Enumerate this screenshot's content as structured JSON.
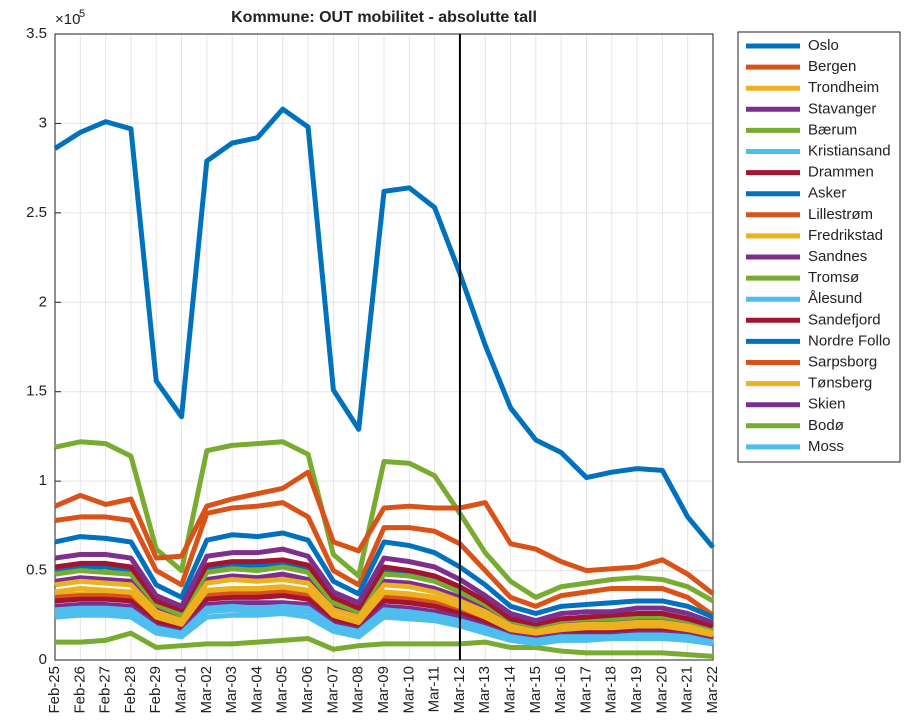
{
  "chart_data": {
    "type": "line",
    "title": "Kommune: OUT mobilitet - absolutte tall",
    "y_multiplier": "×10",
    "y_multiplier_exponent": "5",
    "vline": "Mar-12",
    "grid": true,
    "legend": "outside-right",
    "categories": [
      "Feb-25",
      "Feb-26",
      "Feb-27",
      "Feb-28",
      "Feb-29",
      "Mar-01",
      "Mar-02",
      "Mar-03",
      "Mar-04",
      "Mar-05",
      "Mar-06",
      "Mar-07",
      "Mar-08",
      "Mar-09",
      "Mar-10",
      "Mar-11",
      "Mar-12",
      "Mar-13",
      "Mar-14",
      "Mar-15",
      "Mar-16",
      "Mar-17",
      "Mar-18",
      "Mar-19",
      "Mar-20",
      "Mar-21",
      "Mar-22"
    ],
    "ylim": [
      0,
      3.5
    ],
    "yticks": [
      0,
      0.5,
      1,
      1.5,
      2,
      2.5,
      3,
      3.5
    ],
    "series": [
      {
        "name": "Oslo",
        "color": "#0072BD",
        "values": [
          2.86,
          2.95,
          3.01,
          2.97,
          1.56,
          1.36,
          2.79,
          2.89,
          2.92,
          3.08,
          2.98,
          1.51,
          1.29,
          2.62,
          2.64,
          2.53,
          2.16,
          1.76,
          1.41,
          1.23,
          1.16,
          1.02,
          1.05,
          1.07,
          1.06,
          0.8,
          0.63
        ]
      },
      {
        "name": "Bergen",
        "color": "#D95319",
        "values": [
          0.86,
          0.92,
          0.87,
          0.9,
          0.57,
          0.58,
          0.86,
          0.9,
          0.93,
          0.96,
          1.05,
          0.66,
          0.61,
          0.85,
          0.86,
          0.85,
          0.85,
          0.88,
          0.65,
          0.62,
          0.55,
          0.5,
          0.51,
          0.52,
          0.56,
          0.48,
          0.37
        ]
      },
      {
        "name": "Trondheim",
        "color": "#EDB120",
        "values": [
          0.42,
          0.44,
          0.43,
          0.42,
          0.27,
          0.22,
          0.43,
          0.45,
          0.44,
          0.45,
          0.43,
          0.28,
          0.24,
          0.42,
          0.41,
          0.38,
          0.33,
          0.27,
          0.19,
          0.16,
          0.19,
          0.2,
          0.2,
          0.21,
          0.21,
          0.19,
          0.15
        ]
      },
      {
        "name": "Stavanger",
        "color": "#7E2F8E",
        "values": [
          0.57,
          0.59,
          0.59,
          0.57,
          0.36,
          0.3,
          0.58,
          0.6,
          0.6,
          0.62,
          0.58,
          0.38,
          0.32,
          0.57,
          0.55,
          0.52,
          0.45,
          0.36,
          0.26,
          0.22,
          0.26,
          0.27,
          0.27,
          0.29,
          0.29,
          0.26,
          0.21
        ]
      },
      {
        "name": "Bærum",
        "color": "#77AC30",
        "values": [
          1.19,
          1.22,
          1.21,
          1.14,
          0.62,
          0.5,
          1.17,
          1.2,
          1.21,
          1.22,
          1.15,
          0.59,
          0.47,
          1.11,
          1.1,
          1.03,
          0.82,
          0.6,
          0.44,
          0.35,
          0.41,
          0.43,
          0.45,
          0.46,
          0.45,
          0.41,
          0.33
        ]
      },
      {
        "name": "Kristiansand",
        "color": "#4DBEEE",
        "values": [
          0.28,
          0.29,
          0.29,
          0.28,
          0.18,
          0.15,
          0.29,
          0.3,
          0.29,
          0.3,
          0.29,
          0.19,
          0.16,
          0.28,
          0.27,
          0.25,
          0.22,
          0.18,
          0.13,
          0.11,
          0.13,
          0.13,
          0.13,
          0.14,
          0.14,
          0.13,
          0.1
        ]
      },
      {
        "name": "Drammen",
        "color": "#A2142F",
        "values": [
          0.52,
          0.54,
          0.54,
          0.52,
          0.33,
          0.28,
          0.53,
          0.55,
          0.55,
          0.56,
          0.53,
          0.35,
          0.29,
          0.52,
          0.5,
          0.47,
          0.41,
          0.33,
          0.23,
          0.2,
          0.23,
          0.24,
          0.25,
          0.26,
          0.26,
          0.23,
          0.19
        ]
      },
      {
        "name": "Asker",
        "color": "#0072BD",
        "values": [
          0.66,
          0.69,
          0.68,
          0.66,
          0.42,
          0.35,
          0.67,
          0.7,
          0.69,
          0.71,
          0.67,
          0.44,
          0.37,
          0.66,
          0.64,
          0.6,
          0.52,
          0.42,
          0.3,
          0.26,
          0.3,
          0.31,
          0.32,
          0.33,
          0.33,
          0.3,
          0.24
        ]
      },
      {
        "name": "Lillestrøm",
        "color": "#D95319",
        "values": [
          0.78,
          0.8,
          0.8,
          0.78,
          0.5,
          0.42,
          0.82,
          0.85,
          0.86,
          0.88,
          0.8,
          0.5,
          0.42,
          0.74,
          0.74,
          0.72,
          0.65,
          0.5,
          0.35,
          0.3,
          0.36,
          0.38,
          0.4,
          0.4,
          0.4,
          0.35,
          0.25
        ]
      },
      {
        "name": "Fredrikstad",
        "color": "#EDB120",
        "values": [
          0.38,
          0.4,
          0.39,
          0.38,
          0.24,
          0.2,
          0.39,
          0.4,
          0.4,
          0.41,
          0.39,
          0.25,
          0.21,
          0.38,
          0.37,
          0.35,
          0.3,
          0.24,
          0.17,
          0.15,
          0.17,
          0.18,
          0.18,
          0.19,
          0.19,
          0.17,
          0.14
        ]
      },
      {
        "name": "Sandnes",
        "color": "#7E2F8E",
        "values": [
          0.3,
          0.31,
          0.31,
          0.3,
          0.19,
          0.16,
          0.31,
          0.32,
          0.32,
          0.32,
          0.31,
          0.2,
          0.17,
          0.3,
          0.29,
          0.27,
          0.24,
          0.19,
          0.14,
          0.12,
          0.14,
          0.14,
          0.14,
          0.15,
          0.15,
          0.14,
          0.11
        ]
      },
      {
        "name": "Tromsø",
        "color": "#77AC30",
        "values": [
          0.48,
          0.5,
          0.49,
          0.48,
          0.31,
          0.25,
          0.49,
          0.51,
          0.5,
          0.52,
          0.49,
          0.32,
          0.27,
          0.48,
          0.47,
          0.44,
          0.38,
          0.31,
          0.22,
          0.19,
          0.22,
          0.23,
          0.23,
          0.24,
          0.24,
          0.22,
          0.17
        ]
      },
      {
        "name": "Ålesund",
        "color": "#4DBEEE",
        "values": [
          0.24,
          0.25,
          0.25,
          0.24,
          0.15,
          0.13,
          0.24,
          0.25,
          0.25,
          0.26,
          0.24,
          0.16,
          0.13,
          0.24,
          0.23,
          0.22,
          0.19,
          0.15,
          0.11,
          0.09,
          0.11,
          0.11,
          0.12,
          0.12,
          0.12,
          0.11,
          0.09
        ]
      },
      {
        "name": "Sandefjord",
        "color": "#A2142F",
        "values": [
          0.33,
          0.34,
          0.34,
          0.33,
          0.21,
          0.17,
          0.34,
          0.35,
          0.35,
          0.36,
          0.34,
          0.22,
          0.18,
          0.33,
          0.32,
          0.3,
          0.26,
          0.21,
          0.15,
          0.13,
          0.15,
          0.16,
          0.16,
          0.17,
          0.17,
          0.15,
          0.12
        ]
      },
      {
        "name": "Nordre Follo",
        "color": "#0072BD",
        "values": [
          0.5,
          0.52,
          0.52,
          0.5,
          0.32,
          0.27,
          0.51,
          0.53,
          0.53,
          0.54,
          0.51,
          0.34,
          0.28,
          0.5,
          0.49,
          0.46,
          0.4,
          0.32,
          0.23,
          0.2,
          0.23,
          0.24,
          0.24,
          0.25,
          0.25,
          0.23,
          0.18
        ]
      },
      {
        "name": "Sarpsborg",
        "color": "#D95319",
        "values": [
          0.35,
          0.36,
          0.36,
          0.35,
          0.22,
          0.19,
          0.36,
          0.37,
          0.37,
          0.38,
          0.36,
          0.23,
          0.2,
          0.35,
          0.34,
          0.32,
          0.28,
          0.22,
          0.16,
          0.14,
          0.16,
          0.16,
          0.17,
          0.18,
          0.18,
          0.16,
          0.13
        ]
      },
      {
        "name": "Tønsberg",
        "color": "#EDB120",
        "values": [
          0.36,
          0.37,
          0.37,
          0.36,
          0.23,
          0.19,
          0.37,
          0.38,
          0.38,
          0.39,
          0.37,
          0.24,
          0.2,
          0.36,
          0.35,
          0.33,
          0.28,
          0.23,
          0.16,
          0.14,
          0.16,
          0.17,
          0.17,
          0.18,
          0.18,
          0.16,
          0.13
        ]
      },
      {
        "name": "Skien",
        "color": "#7E2F8E",
        "values": [
          0.44,
          0.46,
          0.45,
          0.44,
          0.28,
          0.23,
          0.45,
          0.47,
          0.46,
          0.48,
          0.45,
          0.29,
          0.25,
          0.44,
          0.43,
          0.4,
          0.35,
          0.28,
          0.2,
          0.17,
          0.2,
          0.21,
          0.21,
          0.22,
          0.22,
          0.2,
          0.16
        ]
      },
      {
        "name": "Bodø",
        "color": "#77AC30",
        "values": [
          0.1,
          0.1,
          0.11,
          0.15,
          0.07,
          0.08,
          0.09,
          0.09,
          0.1,
          0.11,
          0.12,
          0.06,
          0.08,
          0.09,
          0.09,
          0.09,
          0.09,
          0.1,
          0.07,
          0.07,
          0.05,
          0.04,
          0.04,
          0.04,
          0.04,
          0.03,
          0.02
        ]
      },
      {
        "name": "Moss",
        "color": "#4DBEEE",
        "values": [
          0.26,
          0.27,
          0.27,
          0.26,
          0.17,
          0.14,
          0.27,
          0.28,
          0.27,
          0.28,
          0.27,
          0.17,
          0.15,
          0.26,
          0.25,
          0.24,
          0.21,
          0.17,
          0.12,
          0.1,
          0.12,
          0.12,
          0.12,
          0.13,
          0.13,
          0.12,
          0.09
        ]
      }
    ]
  }
}
